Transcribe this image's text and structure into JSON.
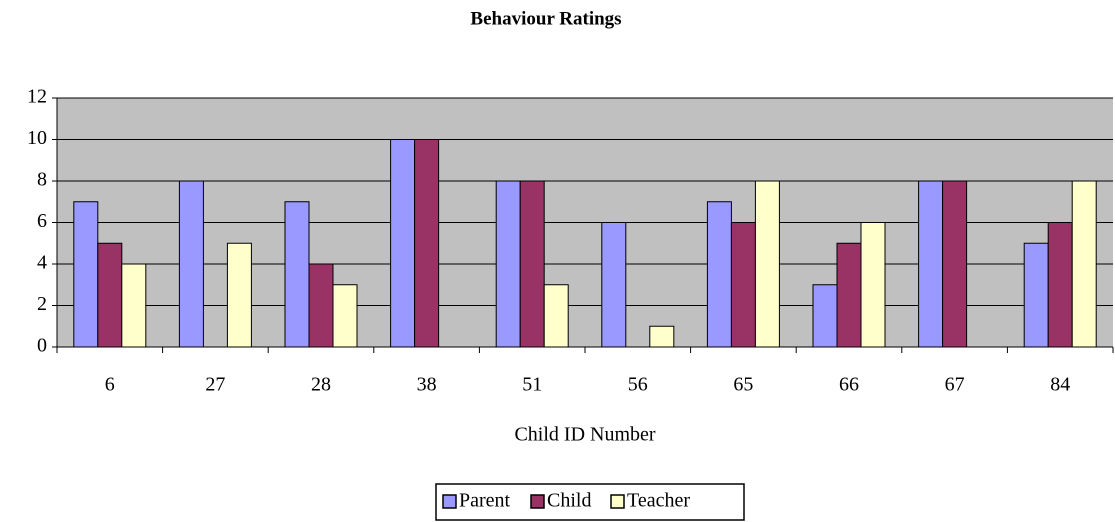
{
  "chart_data": {
    "type": "bar",
    "title": "Behaviour Ratings",
    "xlabel": "Child ID Number",
    "categories": [
      "6",
      "27",
      "28",
      "38",
      "51",
      "56",
      "65",
      "66",
      "67",
      "84"
    ],
    "series": [
      {
        "name": "Parent",
        "color": "#9999ff",
        "values": [
          7,
          8,
          7,
          10,
          8,
          6,
          7,
          3,
          8,
          5
        ]
      },
      {
        "name": "Child",
        "color": "#993366",
        "values": [
          5,
          null,
          4,
          10,
          8,
          null,
          6,
          5,
          8,
          6
        ]
      },
      {
        "name": "Teacher",
        "color": "#ffffcc",
        "values": [
          4,
          5,
          3,
          null,
          3,
          1,
          8,
          6,
          null,
          8
        ]
      }
    ],
    "ylim": [
      0,
      12
    ],
    "yticks": [
      0,
      2,
      4,
      6,
      8,
      10,
      12
    ],
    "grid": true,
    "legend": "bottom"
  }
}
